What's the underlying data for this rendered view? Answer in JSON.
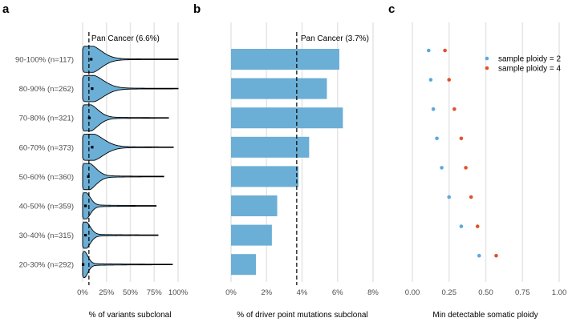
{
  "colors": {
    "fill": "#6baed6",
    "grid": "#e6e6e6",
    "sample2": "#5da9dc",
    "sample4": "#e0522d",
    "text": "#4d4d4d"
  },
  "chart_data": [
    {
      "panel": "a",
      "type": "violin",
      "categories": [
        "90-100% (n=117)",
        "80-90% (n=262)",
        "70-80% (n=321)",
        "60-70% (n=373)",
        "50-60% (n=360)",
        "40-50% (n=359)",
        "30-40% (n=315)",
        "20-30% (n=292)"
      ],
      "xlabel": "% of variants subclonal",
      "xlim": [
        0,
        100
      ],
      "xticks": [
        "0%",
        "25%",
        "50%",
        "75%",
        "100%"
      ],
      "xtick_values": [
        0,
        25,
        50,
        75,
        100
      ],
      "medians": [
        9,
        10,
        7,
        10,
        6,
        3,
        3,
        0.5
      ],
      "maxima": [
        100,
        100,
        90,
        95,
        85,
        77,
        79,
        94
      ],
      "reference": {
        "value": 6.6,
        "label": "Pan Cancer (6.6%)"
      }
    },
    {
      "panel": "b",
      "type": "bar",
      "categories": [
        "90-100% (n=117)",
        "80-90% (n=262)",
        "70-80% (n=321)",
        "60-70% (n=373)",
        "50-60% (n=360)",
        "40-50% (n=359)",
        "30-40% (n=315)",
        "20-30% (n=292)"
      ],
      "values": [
        6.1,
        5.4,
        6.3,
        4.4,
        3.8,
        2.6,
        2.3,
        1.4
      ],
      "xlabel": "% of driver point mutations subclonal",
      "xlim": [
        0,
        8
      ],
      "xticks": [
        "0%",
        "2%",
        "4%",
        "6%",
        "8%"
      ],
      "xtick_values": [
        0,
        2,
        4,
        6,
        8
      ],
      "reference": {
        "value": 3.7,
        "label": "Pan Cancer (3.7%)"
      }
    },
    {
      "panel": "c",
      "type": "scatter",
      "categories": [
        "90-100% (n=117)",
        "80-90% (n=262)",
        "70-80% (n=321)",
        "60-70% (n=373)",
        "50-60% (n=360)",
        "40-50% (n=359)",
        "30-40% (n=315)",
        "20-30% (n=292)"
      ],
      "series": [
        {
          "name": "sample ploidy = 2",
          "values": [
            0.111,
            0.125,
            0.143,
            0.167,
            0.2,
            0.25,
            0.333,
            0.455
          ]
        },
        {
          "name": "sample ploidy = 4",
          "values": [
            0.222,
            0.25,
            0.286,
            0.333,
            0.364,
            0.4,
            0.444,
            0.571
          ]
        }
      ],
      "xlabel": "Min detectable somatic ploidy",
      "xlim": [
        0,
        1
      ],
      "xticks": [
        "0.00",
        "0.25",
        "0.50",
        "0.75",
        "1.00"
      ],
      "xtick_values": [
        0,
        0.25,
        0.5,
        0.75,
        1
      ],
      "legend_position": "top-right"
    }
  ],
  "panel_labels": [
    "a",
    "b",
    "c"
  ]
}
